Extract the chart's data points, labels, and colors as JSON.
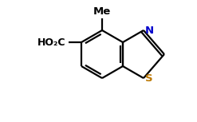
{
  "bg_color": "#ffffff",
  "bond_color": "#000000",
  "N_color": "#0000cc",
  "S_color": "#bb7700",
  "lw": 1.6,
  "dbo": 0.012,
  "figsize": [
    2.47,
    1.53
  ],
  "dpi": 100,
  "xlim": [
    0,
    247
  ],
  "ylim": [
    0,
    153
  ],
  "Me_text": "Me",
  "COOH_text": "HO₂C",
  "N_text": "N",
  "S_text": "S",
  "Me_fontsize": 9.5,
  "COOH_fontsize": 9.0,
  "NS_fontsize": 9.5
}
